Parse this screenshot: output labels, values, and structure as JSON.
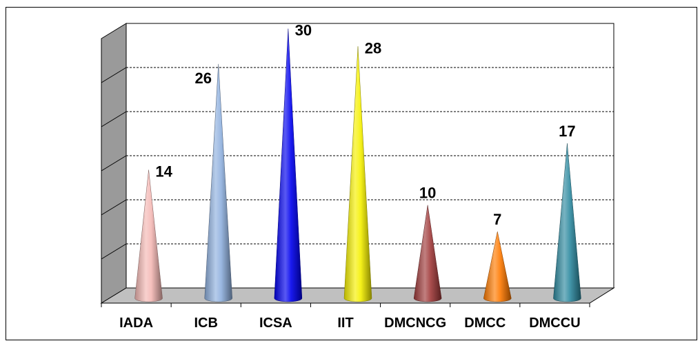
{
  "chart_data": {
    "type": "bar",
    "style": "3d-cone",
    "categories": [
      "IADA",
      "ICB",
      "ICSA",
      "IIT",
      "DMCNCG",
      "DMCC",
      "DMCCU"
    ],
    "values": [
      14,
      26,
      30,
      28,
      10,
      7,
      17
    ],
    "data_labels": [
      "14",
      "26",
      "30",
      "28",
      "10",
      "7",
      "17"
    ],
    "colors": [
      "#f4b8b4",
      "#8fb0de",
      "#0000ee",
      "#f5f000",
      "#a03a3a",
      "#ff7a00",
      "#2e8aa0"
    ],
    "ylim": [
      0,
      30
    ],
    "grid": true,
    "legend": "none"
  }
}
